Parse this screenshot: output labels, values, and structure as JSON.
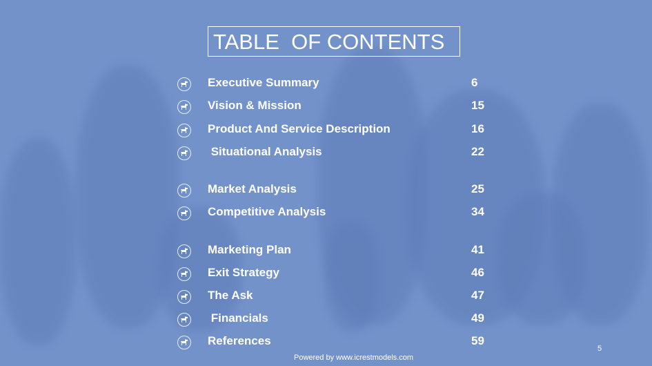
{
  "title": "TABLE  OF CONTENTS",
  "items": [
    {
      "label": "Executive Summary",
      "page": "6"
    },
    {
      "label": "Vision & Mission",
      "page": "15"
    },
    {
      "label": "Product And Service Description",
      "page": "16"
    },
    {
      "label": " Situational Analysis",
      "page": "22"
    },
    {
      "label": "Market Analysis",
      "page": "25"
    },
    {
      "label": "Competitive Analysis",
      "page": "34"
    },
    {
      "label": "Marketing Plan",
      "page": "41"
    },
    {
      "label": "Exit Strategy",
      "page": "46"
    },
    {
      "label": "The Ask",
      "page": "47"
    },
    {
      "label": " Financials",
      "page": "49"
    },
    {
      "label": "References",
      "page": "59"
    }
  ],
  "footer": "Powered by www.icrestmodels.com",
  "slide_number": "5",
  "icon": "dog-icon"
}
